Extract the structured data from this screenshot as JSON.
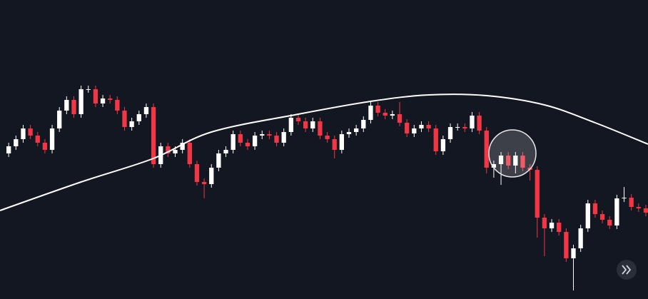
{
  "chart_data": {
    "type": "candlestick",
    "up_color": "#ffffff",
    "down_color": "#f23645",
    "xlim": [
      -1.2,
      88.3
    ],
    "ylim": [
      0,
      419
    ],
    "open": [
      204,
      214,
      224,
      239,
      229,
      219,
      209,
      239,
      264,
      279,
      259,
      294,
      294,
      274,
      281,
      279,
      264,
      241,
      249,
      259,
      269,
      189,
      214,
      204,
      209,
      219,
      189,
      164,
      161,
      184,
      204,
      209,
      231,
      219,
      214,
      229,
      231,
      229,
      219,
      234,
      254,
      249,
      239,
      249,
      229,
      224,
      209,
      231,
      234,
      239,
      251,
      271,
      261,
      257,
      259,
      247,
      232,
      239,
      244,
      239,
      207,
      224,
      241,
      241,
      239,
      257,
      236,
      184,
      189,
      201,
      187,
      201,
      184,
      181,
      114,
      99,
      107,
      94,
      57,
      71,
      99,
      134,
      119,
      111,
      103,
      141,
      142,
      129,
      127
    ],
    "high": [
      219,
      229,
      244,
      244,
      234,
      224,
      244,
      269,
      284,
      284,
      299,
      299,
      299,
      286,
      286,
      284,
      269,
      254,
      264,
      274,
      274,
      219,
      219,
      214,
      224,
      224,
      194,
      169,
      189,
      209,
      214,
      236,
      236,
      224,
      234,
      236,
      236,
      234,
      239,
      259,
      259,
      254,
      254,
      254,
      234,
      229,
      236,
      239,
      244,
      256,
      276,
      276,
      266,
      264,
      276,
      252,
      244,
      249,
      249,
      244,
      229,
      246,
      246,
      246,
      262,
      262,
      241,
      194,
      206,
      206,
      206,
      206,
      189,
      186,
      119,
      112,
      112,
      99,
      76,
      104,
      139,
      139,
      124,
      116,
      146,
      157,
      147,
      134,
      132
    ],
    "low": [
      199,
      209,
      219,
      224,
      214,
      204,
      204,
      234,
      259,
      254,
      254,
      289,
      269,
      269,
      274,
      259,
      236,
      236,
      244,
      254,
      184,
      184,
      199,
      199,
      204,
      184,
      159,
      141,
      156,
      179,
      199,
      204,
      214,
      209,
      209,
      224,
      224,
      214,
      214,
      229,
      244,
      234,
      234,
      224,
      219,
      197,
      204,
      226,
      229,
      234,
      246,
      256,
      252,
      252,
      242,
      227,
      227,
      234,
      234,
      202,
      202,
      219,
      236,
      234,
      234,
      231,
      176,
      170,
      160,
      182,
      176,
      179,
      166,
      86,
      60,
      94,
      89,
      52,
      12,
      66,
      94,
      114,
      106,
      98,
      98,
      136,
      124,
      122,
      116
    ],
    "close": [
      214,
      224,
      239,
      229,
      219,
      209,
      239,
      264,
      279,
      259,
      294,
      294,
      274,
      281,
      279,
      264,
      241,
      249,
      259,
      269,
      189,
      214,
      204,
      209,
      219,
      189,
      164,
      161,
      184,
      204,
      209,
      231,
      219,
      214,
      229,
      231,
      229,
      219,
      234,
      254,
      249,
      239,
      249,
      229,
      224,
      209,
      231,
      234,
      239,
      251,
      271,
      261,
      257,
      259,
      247,
      232,
      239,
      244,
      239,
      207,
      224,
      241,
      241,
      239,
      257,
      236,
      184,
      189,
      201,
      187,
      201,
      184,
      181,
      114,
      99,
      107,
      94,
      57,
      71,
      99,
      134,
      119,
      111,
      103,
      141,
      142,
      129,
      127,
      121
    ],
    "series": [
      {
        "color": "#ffffff",
        "x": [
          -1.2,
          10,
          20,
          28,
          40,
          50,
          58,
          66,
          74,
          81,
          88.3
        ],
        "values": [
          124,
          164,
          197,
          234,
          259,
          277,
          286,
          285,
          272,
          247,
          217
        ]
      }
    ]
  }
}
